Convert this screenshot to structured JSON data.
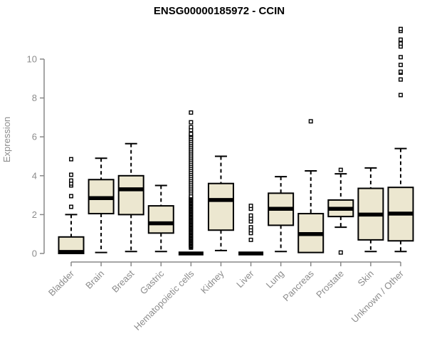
{
  "colors": {
    "box_fill": "#ece7d0",
    "box_stroke": "#000000",
    "median": "#000000",
    "whisker": "#000000",
    "outlier": "#000000",
    "axis": "#888888",
    "tick_label": "#8c8c8c",
    "title": "#000000",
    "background": "#ffffff"
  },
  "chart_data": {
    "type": "boxplot",
    "title": "ENSG00000185972 - CCIN",
    "xlabel": "",
    "ylabel": "Expression",
    "ylim": [
      0,
      10
    ],
    "yticks": [
      0,
      2,
      4,
      6,
      8,
      10
    ],
    "grid": false,
    "legend": false,
    "categories": [
      "Bladder",
      "Brain",
      "Breast",
      "Gastric",
      "Hematopoietic cells",
      "Kidney",
      "Liver",
      "Lung",
      "Pancreas",
      "Prostate",
      "Skin",
      "Unknown / Other"
    ],
    "series": [
      {
        "name": "Bladder",
        "low": 0,
        "q1": 0,
        "median": 0.08,
        "q3": 0.85,
        "high": 2.0,
        "outliers": [
          2.4,
          2.95,
          3.5,
          3.6,
          3.75,
          4.05,
          4.85
        ]
      },
      {
        "name": "Brain",
        "low": 0.05,
        "q1": 2.05,
        "median": 2.85,
        "q3": 3.8,
        "high": 4.9,
        "outliers": []
      },
      {
        "name": "Breast",
        "low": 0.1,
        "q1": 2.0,
        "median": 3.3,
        "q3": 4.0,
        "high": 5.65,
        "outliers": []
      },
      {
        "name": "Gastric",
        "low": 0.1,
        "q1": 1.05,
        "median": 1.55,
        "q3": 2.45,
        "high": 3.5,
        "outliers": []
      },
      {
        "name": "Hematopoietic cells",
        "low": 0,
        "q1": 0,
        "median": 0,
        "q3": 0,
        "high": 0,
        "outliers": [
          0.3,
          0.35,
          0.4,
          0.45,
          0.5,
          0.55,
          0.6,
          0.65,
          0.7,
          0.75,
          0.8,
          0.85,
          0.9,
          0.95,
          1,
          1.05,
          1.1,
          1.15,
          1.2,
          1.25,
          1.3,
          1.35,
          1.4,
          1.45,
          1.5,
          1.55,
          1.6,
          1.65,
          1.7,
          1.75,
          1.8,
          1.85,
          1.9,
          1.95,
          2,
          2.05,
          2.1,
          2.15,
          2.2,
          2.25,
          2.3,
          2.35,
          2.4,
          2.45,
          2.5,
          2.55,
          2.6,
          2.65,
          2.7,
          2.75,
          2.8,
          2.85,
          2.9,
          2.95,
          3.1,
          3.2,
          3.3,
          3.4,
          3.5,
          3.6,
          3.7,
          3.8,
          3.9,
          4,
          4.1,
          4.2,
          4.3,
          4.4,
          4.5,
          4.6,
          4.7,
          4.8,
          4.9,
          5,
          5.1,
          5.2,
          5.3,
          5.4,
          5.5,
          5.6,
          5.7,
          5.8,
          5.9,
          6,
          6.1,
          6.15,
          6.35,
          6.5,
          6.75,
          7.25
        ]
      },
      {
        "name": "Kidney",
        "low": 0.15,
        "q1": 1.2,
        "median": 2.75,
        "q3": 3.6,
        "high": 5.0,
        "outliers": []
      },
      {
        "name": "Liver",
        "low": 0,
        "q1": 0,
        "median": 0,
        "q3": 0,
        "high": 0,
        "outliers": [
          0.7,
          1.05,
          1.2,
          1.35,
          1.65,
          1.8,
          1.95,
          2.3,
          2.45
        ]
      },
      {
        "name": "Lung",
        "low": 0.1,
        "q1": 1.45,
        "median": 2.3,
        "q3": 3.1,
        "high": 3.95,
        "outliers": []
      },
      {
        "name": "Pancreas",
        "low": 0.05,
        "q1": 0.05,
        "median": 1.0,
        "q3": 2.05,
        "high": 4.25,
        "outliers": [
          6.8
        ]
      },
      {
        "name": "Prostate",
        "low": 1.35,
        "q1": 1.9,
        "median": 2.3,
        "q3": 2.75,
        "high": 4.1,
        "outliers": [
          0.05,
          4.3
        ]
      },
      {
        "name": "Skin",
        "low": 0.1,
        "q1": 0.7,
        "median": 2.0,
        "q3": 3.35,
        "high": 4.4,
        "outliers": []
      },
      {
        "name": "Unknown / Other",
        "low": 0.1,
        "q1": 0.65,
        "median": 2.05,
        "q3": 3.4,
        "high": 5.4,
        "outliers": [
          8.15,
          8.95,
          9.3,
          9.35,
          9.7,
          10.1,
          10.65,
          10.8,
          11.0,
          11.45,
          11.55
        ]
      }
    ]
  }
}
